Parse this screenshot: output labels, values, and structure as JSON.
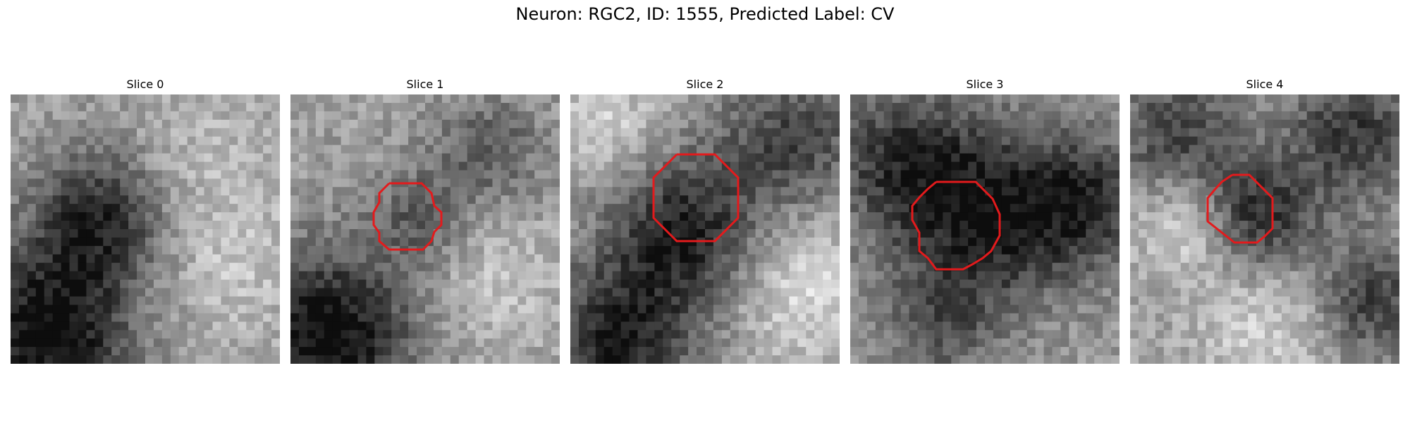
{
  "figure": {
    "title": "Neuron: RGC2, ID: 1555, Predicted Label: CV"
  },
  "panels": [
    {
      "title": "Slice 0",
      "has_outline": false
    },
    {
      "title": "Slice 1",
      "has_outline": true
    },
    {
      "title": "Slice 2",
      "has_outline": true
    },
    {
      "title": "Slice 3",
      "has_outline": true
    },
    {
      "title": "Slice 4",
      "has_outline": true
    }
  ],
  "colors": {
    "outline": "#e31a1c",
    "background": "#ffffff"
  }
}
